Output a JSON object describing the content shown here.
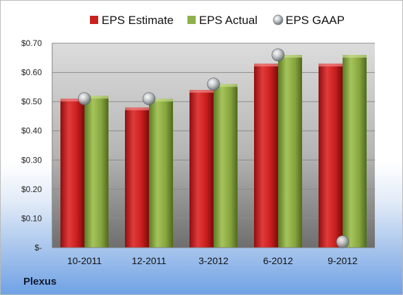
{
  "company": "Plexus",
  "chart_data": {
    "type": "bar",
    "categories": [
      "10-2011",
      "12-2011",
      "3-2012",
      "6-2012",
      "9-2012"
    ],
    "series": [
      {
        "name": "EPS Estimate",
        "kind": "bar",
        "color": "#d42a2a",
        "values": [
          0.51,
          0.48,
          0.54,
          0.63,
          0.63
        ]
      },
      {
        "name": "EPS Actual",
        "kind": "bar",
        "color": "#8fb04a",
        "values": [
          0.52,
          0.51,
          0.56,
          0.66,
          0.66
        ]
      },
      {
        "name": "EPS GAAP",
        "kind": "marker",
        "color": "#a7acb1",
        "values": [
          0.51,
          0.51,
          0.56,
          0.66,
          0.02
        ]
      }
    ],
    "y_ticks": [
      {
        "value": 0.0,
        "label": "$-"
      },
      {
        "value": 0.1,
        "label": "$0.10"
      },
      {
        "value": 0.2,
        "label": "$0.20"
      },
      {
        "value": 0.3,
        "label": "$0.30"
      },
      {
        "value": 0.4,
        "label": "$0.40"
      },
      {
        "value": 0.5,
        "label": "$0.50"
      },
      {
        "value": 0.6,
        "label": "$0.60"
      },
      {
        "value": 0.7,
        "label": "$0.70"
      }
    ],
    "ylim": [
      0,
      0.7
    ],
    "grid": true,
    "legend_position": "top"
  }
}
